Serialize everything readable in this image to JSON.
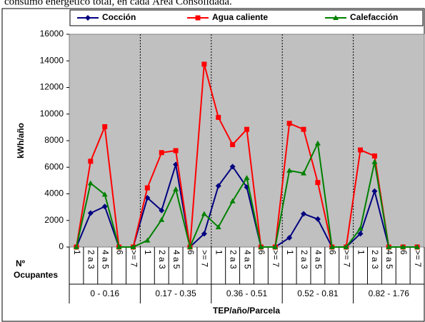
{
  "caption": "consumo energético total, en cada Área Consolidada.",
  "chart_data": {
    "type": "line",
    "y_label": "kWh/año",
    "x_label": "TEP/año/Parcela",
    "category_label": "Nº Ocupantes",
    "groups": [
      "0 - 0.16",
      "0.17 - 0.35",
      "0.36 - 0.51",
      "0.52 - 0.81",
      "0.82 - 1.76"
    ],
    "categories": [
      "1",
      "2 a 3",
      "4 a 5",
      "6",
      ">= 7",
      "1",
      "2 a 3",
      "4 a 5",
      "6",
      ">= 7",
      "1",
      "2 a 3",
      "4 a 5",
      "6",
      ">= 7",
      "1",
      "2 a 3",
      "4 a 5",
      "6",
      ">= 7",
      "1",
      "2 a 3",
      "4 a 5",
      "6",
      ">= 7"
    ],
    "series": [
      {
        "name": "Cocción",
        "color": "#000080",
        "marker": "diamond",
        "values": [
          0,
          2550,
          3050,
          0,
          0,
          3700,
          2750,
          6200,
          0,
          1000,
          4600,
          6050,
          4500,
          0,
          0,
          700,
          2500,
          2100,
          0,
          0,
          1000,
          4200,
          0,
          0,
          0
        ]
      },
      {
        "name": "Agua caliente",
        "color": "#ff0000",
        "marker": "square",
        "values": [
          0,
          6450,
          9050,
          0,
          0,
          4450,
          7100,
          7250,
          0,
          13750,
          9750,
          7700,
          8850,
          0,
          0,
          9300,
          8850,
          4850,
          0,
          0,
          7300,
          6850,
          0,
          0,
          0
        ]
      },
      {
        "name": "Calefacción",
        "color": "#008000",
        "marker": "triangle",
        "values": [
          0,
          4800,
          3950,
          0,
          0,
          500,
          2050,
          4350,
          0,
          2500,
          1500,
          3450,
          5200,
          0,
          0,
          5750,
          5550,
          7800,
          0,
          0,
          1400,
          6400,
          0,
          0,
          0
        ]
      }
    ],
    "ylim": [
      0,
      16000
    ],
    "yticks": [
      0,
      2000,
      4000,
      6000,
      8000,
      10000,
      12000,
      14000,
      16000
    ],
    "grid": false,
    "legend": "top",
    "plot_background": "#c0c0c0"
  }
}
